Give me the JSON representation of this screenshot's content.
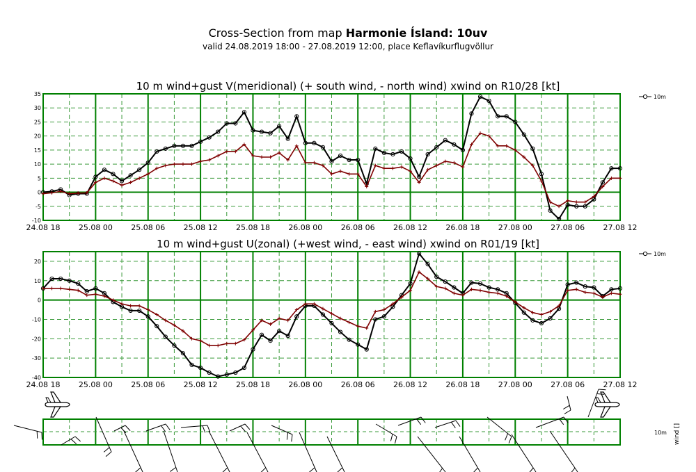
{
  "header": {
    "title_prefix": "Cross-Section from map ",
    "title_bold": "Harmonie Ísland: 10uv",
    "subtitle": "valid 24.08.2019 18:00 - 27.08.2019 12:00, place Keflavíkurflugvöllur"
  },
  "colors": {
    "wind_line": "#000000",
    "gust_line": "#7f0000",
    "grid": "#008000",
    "grid_dashed": "#3a9a3a"
  },
  "chart_data": [
    {
      "type": "line",
      "title": "10 m wind+gust V(meridional) (+ south wind, - north wind) xwind on R10/28 [kt]",
      "legend": "10m",
      "legend_position": "top-right",
      "grid": true,
      "ylim": [
        -10,
        35
      ],
      "yticks": [
        -10,
        -5,
        0,
        5,
        10,
        15,
        20,
        25,
        30,
        35
      ],
      "xticks": [
        "24.08 18",
        "25.08 00",
        "25.08 06",
        "25.08 12",
        "25.08 18",
        "26.08 00",
        "26.08 06",
        "26.08 12",
        "26.08 18",
        "27.08 00",
        "27.08 06",
        "27.08 12"
      ],
      "x_hours_from_first_tick": [
        0,
        1,
        2,
        3,
        4,
        5,
        6,
        7,
        8,
        9,
        10,
        11,
        12,
        13,
        14,
        15,
        16,
        17,
        18,
        19,
        20,
        21,
        22,
        23,
        24,
        25,
        26,
        27,
        28,
        29,
        30,
        31,
        32,
        33,
        34,
        35,
        36,
        37,
        38,
        39,
        40,
        41,
        42,
        43,
        44,
        45,
        46,
        47,
        48,
        49,
        50,
        51,
        52,
        53,
        54,
        55,
        56,
        57,
        58,
        59,
        60,
        61,
        62,
        63,
        64,
        65,
        66
      ],
      "series": [
        {
          "name": "10m",
          "role": "wind",
          "values": [
            0,
            0.3,
            1,
            -1,
            -0.5,
            -0.5,
            5.5,
            8,
            6.5,
            4,
            6,
            8,
            10.5,
            14.5,
            15.5,
            16.5,
            16.5,
            16.5,
            18,
            19.5,
            21.5,
            24.5,
            24.5,
            28.5,
            22,
            21.5,
            21,
            23.5,
            19,
            27,
            17.5,
            17.5,
            16,
            11,
            13,
            11.5,
            11.5,
            3,
            15.5,
            14,
            13.5,
            14.5,
            12,
            5.5,
            13.5,
            16,
            18.5,
            17,
            15,
            28,
            34,
            32.5,
            27,
            27,
            25,
            20.5,
            15.5,
            6.5,
            -6.5,
            -9.5,
            -4.5,
            -5,
            -5,
            -2.5,
            3.5,
            8.5,
            8.5
          ]
        },
        {
          "role": "gust",
          "values": [
            -0.5,
            -0.2,
            0.3,
            -0.5,
            -0.3,
            -0.2,
            3.5,
            5,
            4,
            2.5,
            3.5,
            5,
            6.5,
            8.5,
            9.5,
            10,
            10,
            10,
            11,
            11.5,
            13,
            14.5,
            14.5,
            17,
            13,
            12.5,
            12.5,
            14,
            11.5,
            16.5,
            10.5,
            10.5,
            9.5,
            6.5,
            7.5,
            6.5,
            6.5,
            2,
            9.5,
            8.5,
            8.5,
            9,
            7.5,
            3.5,
            8,
            9.5,
            11,
            10.5,
            9,
            17,
            21,
            20,
            16.5,
            16.5,
            15,
            12.5,
            9.5,
            4,
            -3.5,
            -5,
            -3,
            -3.5,
            -3.5,
            -1.5,
            2,
            5,
            5
          ]
        }
      ]
    },
    {
      "type": "line",
      "title": "10 m wind+gust U(zonal) (+west wind, - east wind) xwind on R01/19 [kt]",
      "legend": "10m",
      "legend_position": "top-right",
      "grid": true,
      "ylim": [
        -40,
        25
      ],
      "yticks": [
        -40,
        -30,
        -20,
        -10,
        0,
        10,
        20
      ],
      "xticks": [
        "24.08 18",
        "25.08 00",
        "25.08 06",
        "25.08 12",
        "25.08 18",
        "26.08 00",
        "26.08 06",
        "26.08 12",
        "26.08 18",
        "27.08 00",
        "27.08 06",
        "27.08 12"
      ],
      "x_hours_from_first_tick": [
        0,
        1,
        2,
        3,
        4,
        5,
        6,
        7,
        8,
        9,
        10,
        11,
        12,
        13,
        14,
        15,
        16,
        17,
        18,
        19,
        20,
        21,
        22,
        23,
        24,
        25,
        26,
        27,
        28,
        29,
        30,
        31,
        32,
        33,
        34,
        35,
        36,
        37,
        38,
        39,
        40,
        41,
        42,
        43,
        44,
        45,
        46,
        47,
        48,
        49,
        50,
        51,
        52,
        53,
        54,
        55,
        56,
        57,
        58,
        59,
        60,
        61,
        62,
        63,
        64,
        65,
        66
      ],
      "series": [
        {
          "name": "10m",
          "role": "wind",
          "values": [
            6,
            11,
            11,
            10,
            8.5,
            4.5,
            6,
            3.5,
            -1,
            -3.5,
            -5.5,
            -5.5,
            -8.5,
            -13.5,
            -19,
            -23.5,
            -27.5,
            -33.5,
            -35,
            -37.5,
            -39.5,
            -38.5,
            -37.5,
            -35,
            -25.5,
            -18,
            -21,
            -16,
            -18.5,
            -8.5,
            -3,
            -3,
            -7.5,
            -12,
            -16.5,
            -20.5,
            -23,
            -25.5,
            -10,
            -8.5,
            -3.5,
            2.5,
            8.5,
            24,
            18.5,
            12,
            9.5,
            6.5,
            3.5,
            9,
            8.5,
            6.5,
            5.5,
            3.5,
            -1.5,
            -6.5,
            -10.5,
            -12,
            -9.5,
            -4.5,
            8,
            9,
            7,
            6.5,
            2,
            5.5,
            6
          ]
        },
        {
          "role": "gust",
          "values": [
            6,
            6,
            6,
            5.5,
            5,
            2.5,
            3,
            2,
            0,
            -2,
            -3,
            -3,
            -5,
            -7.5,
            -10.5,
            -13,
            -16,
            -20,
            -21,
            -23.5,
            -23.5,
            -22.5,
            -22.5,
            -20.5,
            -15.5,
            -10.5,
            -12.5,
            -9.5,
            -10.5,
            -5,
            -2,
            -2,
            -4.5,
            -7,
            -9.5,
            -11.5,
            -13.5,
            -14.5,
            -6,
            -5,
            -2,
            1.5,
            5,
            14.5,
            11,
            7,
            6,
            3.5,
            2.5,
            5.5,
            5,
            4,
            3.5,
            2,
            -1,
            -4,
            -6.5,
            -7.5,
            -6,
            -3,
            5,
            5.5,
            4,
            3.5,
            1.5,
            3.5,
            3
          ]
        }
      ]
    }
  ],
  "wind_panel": {
    "legend": "10m",
    "axis_label": "wind []"
  }
}
